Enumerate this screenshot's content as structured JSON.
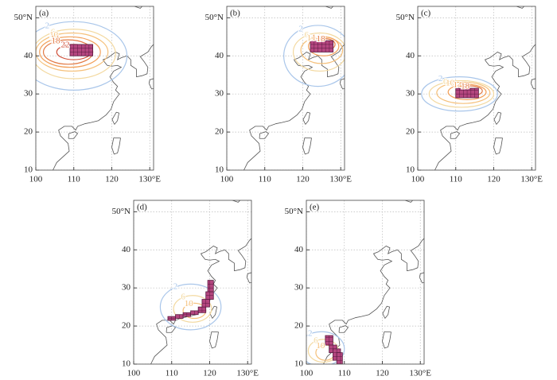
{
  "chart_data": {
    "type": "map",
    "xlim": [
      100,
      131
    ],
    "ylim": [
      10,
      53
    ],
    "xticks": [
      100,
      110,
      120,
      {
        "value": 130,
        "label": "130°E"
      }
    ],
    "yticks": [
      10,
      20,
      30,
      40,
      {
        "value": 50,
        "label": "50°N"
      }
    ],
    "grid": true,
    "box_color": "#b4467f",
    "panels": [
      {
        "label": "(a)",
        "boxes": [
          [
            109,
            115,
            40,
            43
          ]
        ],
        "contours": [
          {
            "level": 2,
            "color": "#a9c6ea",
            "center": [
              110,
              40
            ],
            "radius": [
              14,
              9
            ]
          },
          {
            "level": 6,
            "color": "#f3d9a0",
            "center": [
              110,
              40.5
            ],
            "radius": [
              11,
              6.5
            ]
          },
          {
            "level": 10,
            "color": "#f5c07a",
            "center": [
              109.5,
              41
            ],
            "radius": [
              9.5,
              5
            ]
          },
          {
            "level": 14,
            "color": "#f2a05a",
            "center": [
              109,
              41
            ],
            "radius": [
              8,
              4
            ]
          },
          {
            "level": 18,
            "color": "#e27a45",
            "center": [
              108.5,
              41
            ],
            "radius": [
              6.5,
              3.2
            ]
          },
          {
            "level": 22,
            "color": "#d0503a",
            "center": [
              110,
              41
            ],
            "radius": [
              4.5,
              2
            ]
          }
        ]
      },
      {
        "label": "(b)",
        "boxes": [
          [
            122,
            128,
            41,
            44
          ]
        ],
        "contours": [
          {
            "level": 2,
            "color": "#a9c6ea",
            "center": [
              124,
              40
            ],
            "radius": [
              9,
              8
            ]
          },
          {
            "level": 6,
            "color": "#f3d9a0",
            "center": [
              124.5,
              41
            ],
            "radius": [
              7,
              5
            ]
          },
          {
            "level": 10,
            "color": "#f5c07a",
            "center": [
              125,
              41.5
            ],
            "radius": [
              5.5,
              3.5
            ]
          },
          {
            "level": 14,
            "color": "#f2a05a",
            "center": [
              125.5,
              42.5
            ],
            "radius": [
              4,
              2.5
            ]
          },
          {
            "level": 18,
            "color": "#e27a45",
            "center": [
              126,
              43
            ],
            "radius": [
              2.5,
              1.5
            ]
          }
        ]
      },
      {
        "label": "(c)",
        "boxes": [
          [
            110,
            116,
            29,
            31.5
          ]
        ],
        "contours": [
          {
            "level": 2,
            "color": "#a9c6ea",
            "center": [
              111,
              30
            ],
            "radius": [
              10,
              4.5
            ]
          },
          {
            "level": 6,
            "color": "#f3d9a0",
            "center": [
              111.5,
              30
            ],
            "radius": [
              8.5,
              3.5
            ]
          },
          {
            "level": 10,
            "color": "#f5c07a",
            "center": [
              112,
              30.3
            ],
            "radius": [
              7,
              2.8
            ]
          },
          {
            "level": 14,
            "color": "#f2a05a",
            "center": [
              113,
              30.5
            ],
            "radius": [
              5,
              2
            ]
          },
          {
            "level": 18,
            "color": "#e27a45",
            "center": [
              114,
              30.8
            ],
            "radius": [
              3,
              1.3
            ]
          }
        ]
      },
      {
        "label": "(d)",
        "boxes": [
          [
            109,
            111,
            21.5,
            22.5
          ],
          [
            111,
            113,
            22,
            23
          ],
          [
            113,
            115,
            22.5,
            23.5
          ],
          [
            115,
            117,
            23,
            24
          ],
          [
            117,
            119,
            23.5,
            25
          ],
          [
            118,
            120,
            25,
            27
          ],
          [
            119,
            121,
            27,
            29
          ],
          [
            119.5,
            121,
            29,
            32
          ]
        ],
        "contours": [
          {
            "level": 2,
            "color": "#a9c6ea",
            "center": [
              115,
              25
            ],
            "radius": [
              8,
              6
            ]
          },
          {
            "level": 6,
            "color": "#f3d9a0",
            "center": [
              115.5,
              24.5
            ],
            "radius": [
              5,
              3.5
            ]
          },
          {
            "level": 10,
            "color": "#f5c07a",
            "center": [
              116,
              24
            ],
            "radius": [
              3,
              2
            ]
          }
        ]
      },
      {
        "label": "(e)",
        "boxes": [
          [
            105,
            107,
            15,
            17.5
          ],
          [
            106,
            108,
            13,
            15
          ],
          [
            107,
            109,
            11,
            14
          ],
          [
            108,
            109.5,
            10,
            13
          ]
        ],
        "contours": [
          {
            "level": 2,
            "color": "#a9c6ea",
            "center": [
              104,
              14
            ],
            "radius": [
              6,
              4.5
            ]
          },
          {
            "level": 6,
            "color": "#f3d9a0",
            "center": [
              104.5,
              13.5
            ],
            "radius": [
              4,
              3
            ]
          },
          {
            "level": 10,
            "color": "#f5c07a",
            "center": [
              105,
              13
            ],
            "radius": [
              2.5,
              2
            ]
          }
        ]
      }
    ]
  }
}
